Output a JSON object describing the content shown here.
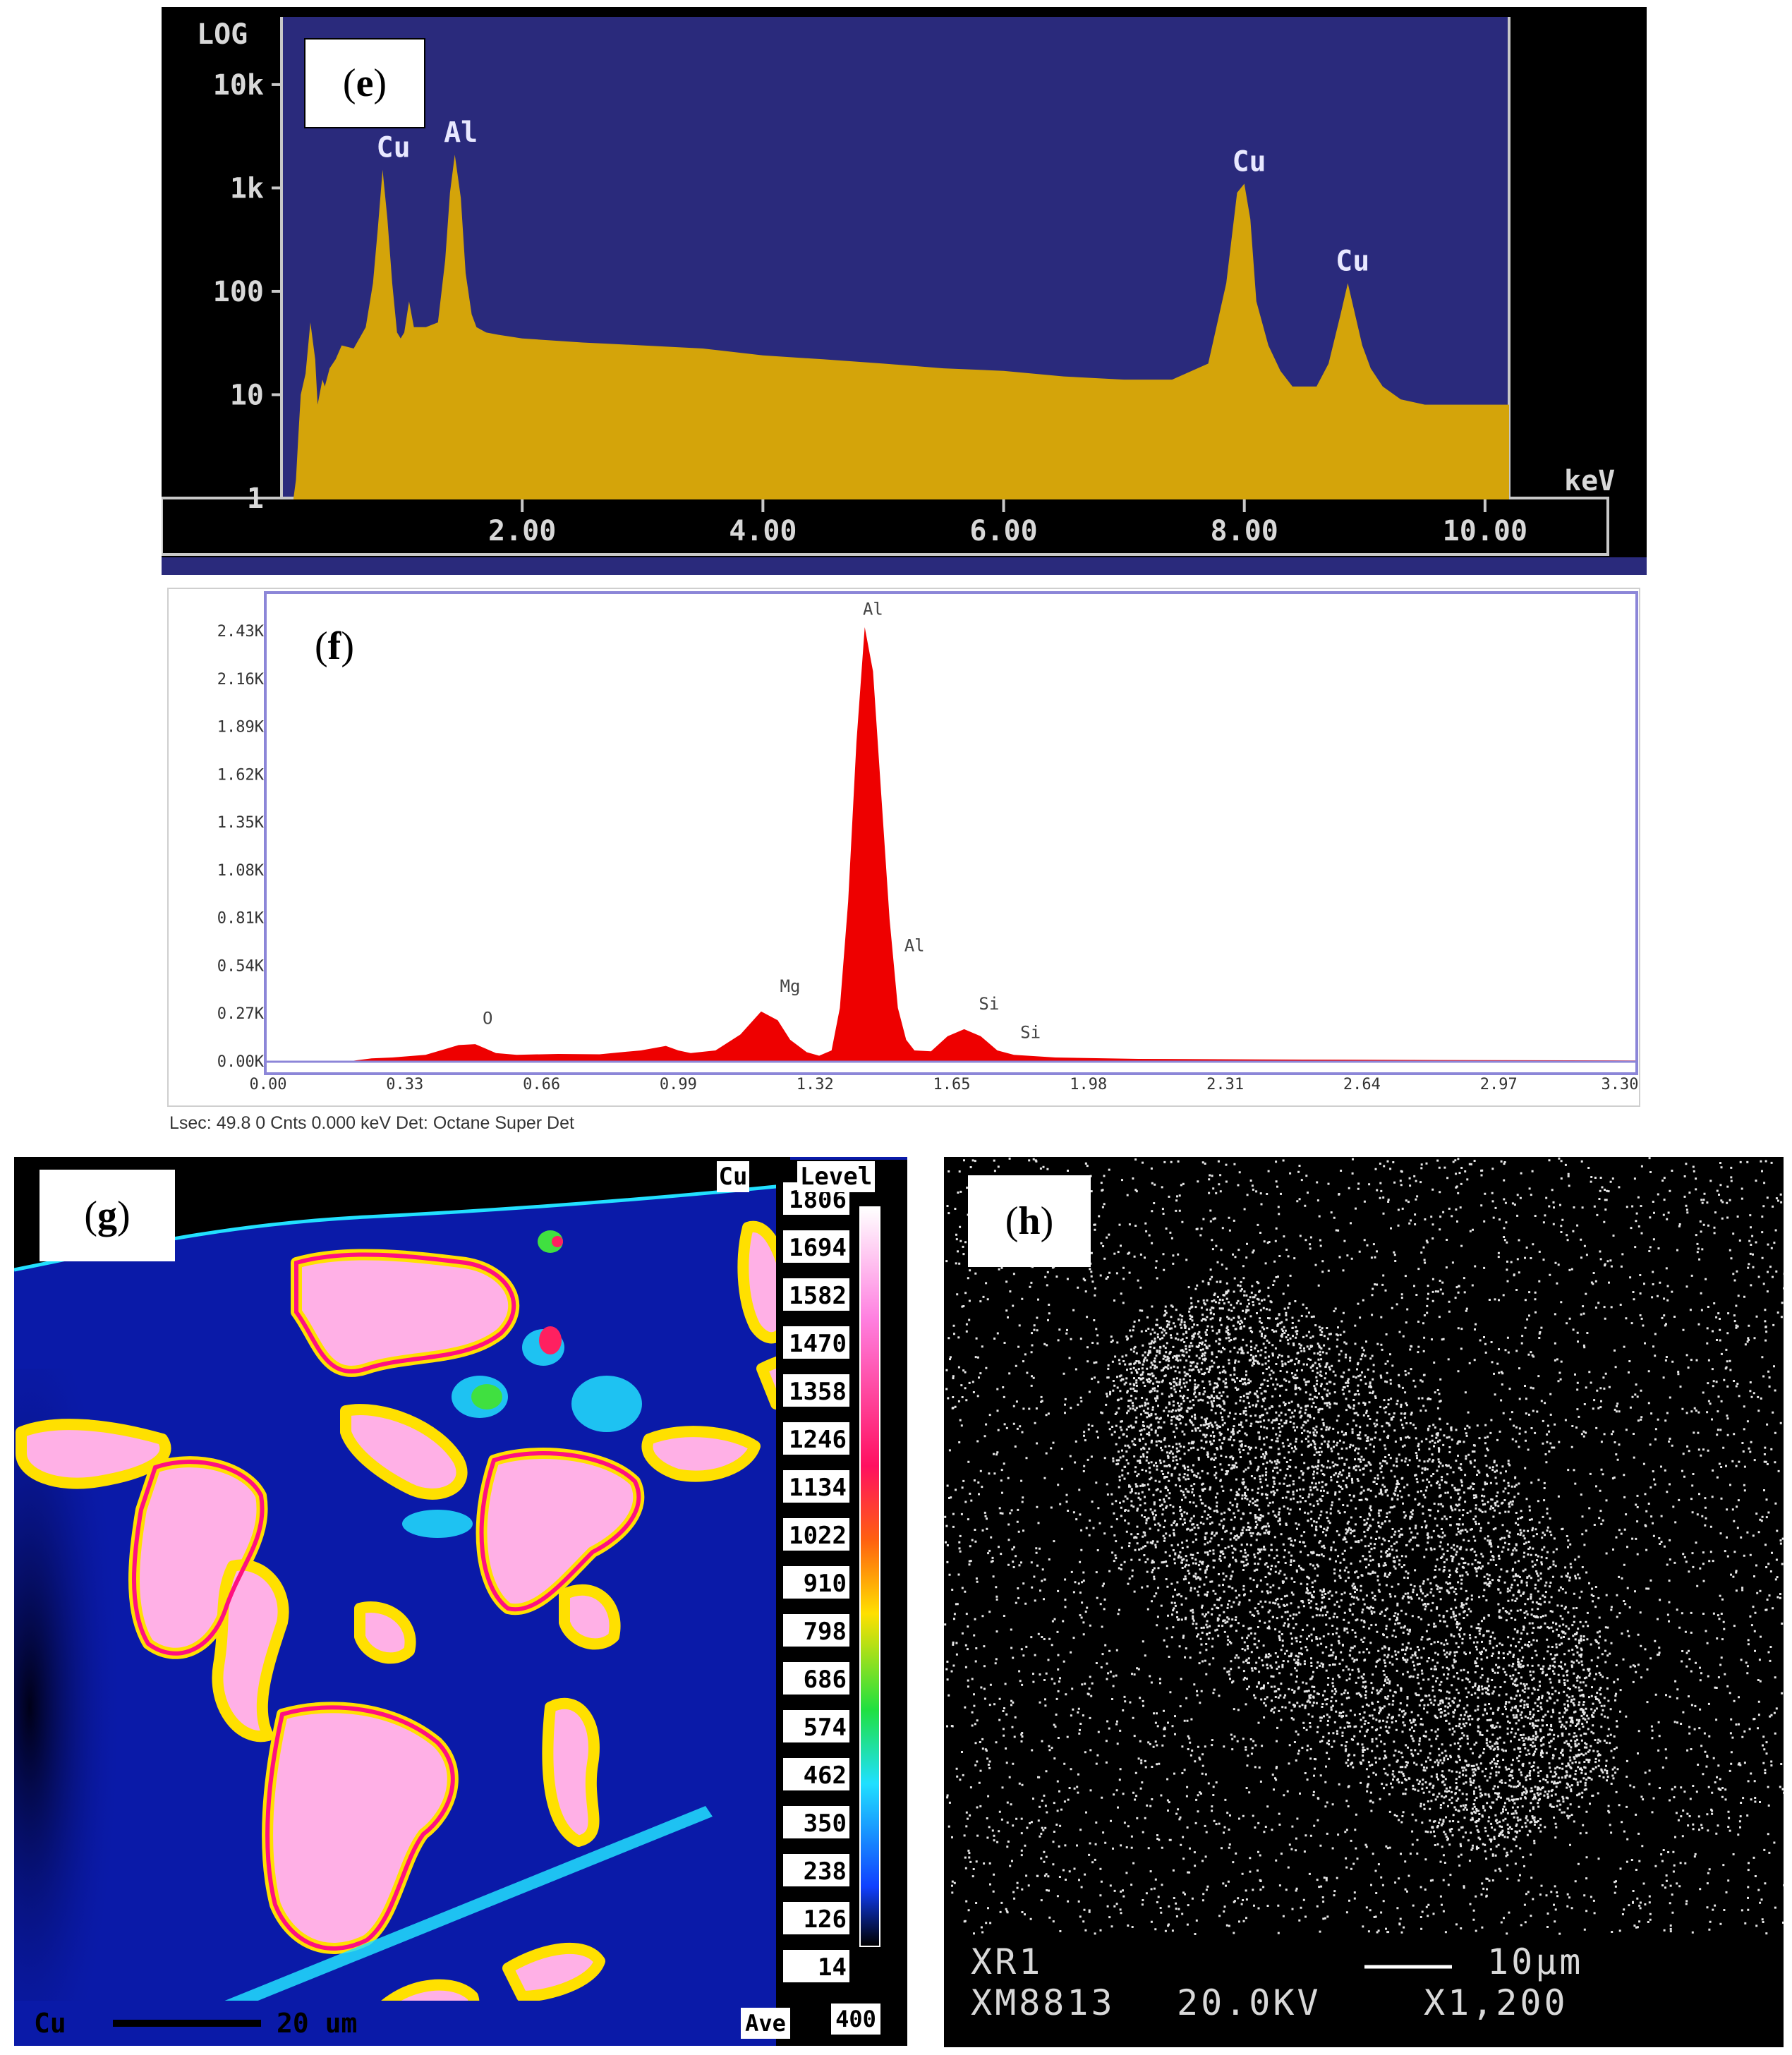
{
  "chart_data": [
    {
      "panel": "e",
      "type": "area",
      "scale": "log",
      "yaxis_label": "LOG",
      "yticks": [
        "10k",
        "1k",
        "100",
        "10",
        "1"
      ],
      "ytick_values": [
        10000,
        1000,
        100,
        10,
        1
      ],
      "xunit": "keV",
      "xticks": [
        "2.00",
        "4.00",
        "6.00",
        "8.00",
        "10.00"
      ],
      "xtick_values": [
        2,
        4,
        6,
        8,
        10
      ],
      "xlim": [
        0,
        10.2
      ],
      "ylim": [
        1,
        30000
      ],
      "series": [
        {
          "color": "#d4a40a",
          "x": [
            0.1,
            0.12,
            0.14,
            0.16,
            0.2,
            0.24,
            0.28,
            0.3,
            0.34,
            0.36,
            0.4,
            0.45,
            0.5,
            0.6,
            0.7,
            0.76,
            0.8,
            0.84,
            0.88,
            0.92,
            0.96,
            0.99,
            1.02,
            1.06,
            1.1,
            1.2,
            1.3,
            1.36,
            1.4,
            1.44,
            1.49,
            1.53,
            1.58,
            1.62,
            1.7,
            1.8,
            2.0,
            2.5,
            3.0,
            3.5,
            4.0,
            4.5,
            5.0,
            5.5,
            6.0,
            6.5,
            7.0,
            7.4,
            7.7,
            7.85,
            7.94,
            8.0,
            8.05,
            8.1,
            8.2,
            8.3,
            8.4,
            8.6,
            8.7,
            8.8,
            8.86,
            8.92,
            8.98,
            9.05,
            9.15,
            9.3,
            9.5,
            9.7,
            9.9,
            10.1,
            10.2
          ],
          "y": [
            1,
            1.5,
            4,
            10,
            16,
            50,
            22,
            8,
            14,
            12,
            18,
            22,
            30,
            28,
            45,
            120,
            400,
            1500,
            500,
            120,
            40,
            35,
            40,
            80,
            45,
            45,
            50,
            200,
            900,
            2100,
            800,
            150,
            60,
            45,
            40,
            38,
            35,
            32,
            30,
            28,
            24,
            22,
            20,
            18,
            17,
            15,
            14,
            14,
            20,
            120,
            900,
            1100,
            500,
            80,
            30,
            17,
            12,
            12,
            20,
            60,
            120,
            60,
            30,
            18,
            12,
            9,
            8,
            8,
            8,
            8,
            8
          ]
        }
      ],
      "annotations": [
        {
          "text": "Cu",
          "x": 0.93
        },
        {
          "text": "Al",
          "x": 1.49
        },
        {
          "text": "Cu",
          "x": 8.04
        },
        {
          "text": "Cu",
          "x": 8.9
        }
      ]
    },
    {
      "panel": "f",
      "type": "area",
      "yticks": [
        "2.43K",
        "2.16K",
        "1.89K",
        "1.62K",
        "1.35K",
        "1.08K",
        "0.81K",
        "0.54K",
        "0.27K",
        "0.00K"
      ],
      "ytick_values": [
        2430,
        2160,
        1890,
        1620,
        1350,
        1080,
        810,
        540,
        270,
        0
      ],
      "xticks": [
        "0.00",
        "0.33",
        "0.66",
        "0.99",
        "1.32",
        "1.65",
        "1.98",
        "2.31",
        "2.64",
        "2.97",
        "3.30"
      ],
      "xtick_values": [
        0,
        0.33,
        0.66,
        0.99,
        1.32,
        1.65,
        1.98,
        2.31,
        2.64,
        2.97,
        3.3
      ],
      "xlim": [
        0,
        3.3
      ],
      "ylim": [
        0,
        2430
      ],
      "series": [
        {
          "color": "#ee0000",
          "x": [
            0.2,
            0.25,
            0.3,
            0.38,
            0.46,
            0.5,
            0.52,
            0.55,
            0.6,
            0.7,
            0.8,
            0.9,
            0.96,
            0.99,
            1.02,
            1.08,
            1.14,
            1.19,
            1.23,
            1.26,
            1.3,
            1.33,
            1.36,
            1.38,
            1.4,
            1.42,
            1.44,
            1.46,
            1.48,
            1.5,
            1.52,
            1.54,
            1.56,
            1.6,
            1.64,
            1.68,
            1.72,
            1.76,
            1.8,
            1.9,
            2.1,
            2.5,
            2.9,
            3.3
          ],
          "y": [
            0,
            15,
            20,
            35,
            90,
            95,
            75,
            45,
            35,
            40,
            38,
            60,
            85,
            60,
            45,
            60,
            150,
            280,
            230,
            120,
            50,
            30,
            60,
            300,
            900,
            1800,
            2450,
            2200,
            1500,
            800,
            300,
            120,
            60,
            55,
            140,
            180,
            140,
            60,
            35,
            20,
            12,
            8,
            5,
            3
          ]
        }
      ],
      "annotations": [
        {
          "text": "Al",
          "x": 1.46,
          "y": 2520
        },
        {
          "text": "Al",
          "x": 1.56,
          "y": 620
        },
        {
          "text": "O",
          "x": 0.53,
          "y": 210
        },
        {
          "text": "Mg",
          "x": 1.26,
          "y": 390
        },
        {
          "text": "Si",
          "x": 1.74,
          "y": 290
        },
        {
          "text": "Si",
          "x": 1.84,
          "y": 130
        }
      ],
      "footer": "Lsec: 49.8 0 Cnts  0.000 keV Det: Octane Super Det"
    }
  ],
  "panels": {
    "e": {
      "label": "e"
    },
    "f": {
      "label": "f"
    },
    "g": {
      "label": "g",
      "element": "Cu",
      "level_title": "Level",
      "levels": [
        "1806",
        "1694",
        "1582",
        "1470",
        "1358",
        "1246",
        "1134",
        "1022",
        "910",
        "798",
        "686",
        "574",
        "462",
        "350",
        "238",
        "126",
        "14"
      ],
      "ave_label": "Ave",
      "ave_value": "400",
      "scalebar_element": "Cu",
      "scalebar_text": "20 um"
    },
    "h": {
      "label": "h",
      "line1": "XR1",
      "scalebar_text": "10µm",
      "line2_left": "XM8813",
      "line2_mid": "20.0KV",
      "line2_right": "X1,200"
    }
  },
  "colors": {
    "e_background": "#2a2a7c",
    "e_fill": "#d4a40a",
    "f_fill": "#ee0000",
    "g_background": "#0a1aa8",
    "g_hot": "#ff4fc4",
    "h_background": "#000000"
  }
}
